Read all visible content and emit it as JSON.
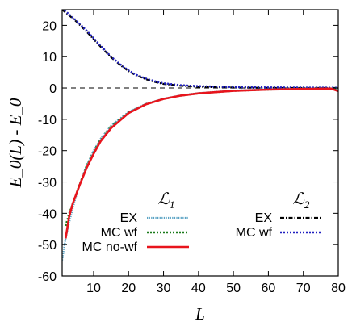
{
  "chart_data": {
    "type": "line",
    "xlabel": "L",
    "ylabel": "E_0(L) - E_0",
    "xlim": [
      1,
      80
    ],
    "ylim": [
      -60,
      25
    ],
    "x_ticks": [
      10,
      20,
      30,
      40,
      50,
      60,
      70,
      80
    ],
    "y_ticks": [
      20,
      10,
      0,
      -10,
      -20,
      -30,
      -40,
      -50,
      -60
    ],
    "grid": false,
    "reference_line": {
      "y": 0,
      "style": "dashed",
      "color": "#000000"
    },
    "legend": {
      "groups": [
        {
          "heading": "ℒ",
          "heading_sub": "1",
          "placement": "center-left",
          "entries": [
            {
              "label": "EX",
              "series": 0
            },
            {
              "label": "MC wf",
              "series": 1
            },
            {
              "label": "MC no-wf",
              "series": 2
            }
          ]
        },
        {
          "heading": "ℒ",
          "heading_sub": "2",
          "placement": "center-right",
          "entries": [
            {
              "label": "EX",
              "series": 3
            },
            {
              "label": "MC wf",
              "series": 4
            }
          ]
        }
      ]
    },
    "series": [
      {
        "name": "EX",
        "group": "L1",
        "color": "#5ba3c4",
        "style": "dotted-fine",
        "x": [
          1,
          2,
          3,
          4,
          5,
          6,
          8,
          10,
          12,
          15,
          20,
          25,
          30,
          35,
          40,
          50,
          60,
          70,
          80
        ],
        "y": [
          -55,
          -48,
          -43,
          -38.5,
          -34.5,
          -31,
          -24.8,
          -20,
          -16.2,
          -12,
          -7.6,
          -5,
          -3.4,
          -2.3,
          -1.6,
          -0.8,
          -0.4,
          -0.2,
          -0.1
        ]
      },
      {
        "name": "MC wf",
        "group": "L1",
        "color": "#1a7a1a",
        "style": "dotted",
        "x": [
          2,
          3,
          4,
          5,
          6,
          8,
          10,
          12,
          15,
          20,
          25,
          30,
          35,
          40,
          50,
          60,
          70,
          80
        ],
        "y": [
          -44,
          -40,
          -37,
          -34,
          -30.8,
          -24.8,
          -20.2,
          -16.4,
          -12.2,
          -7.8,
          -5.1,
          -3.5,
          -2.4,
          -1.7,
          -0.9,
          -0.5,
          -0.3,
          -0.2
        ]
      },
      {
        "name": "MC no-wf",
        "group": "L1",
        "color": "#e8141c",
        "style": "solid",
        "x": [
          2,
          3,
          4,
          5,
          6,
          8,
          10,
          12,
          15,
          20,
          25,
          30,
          35,
          40,
          50,
          60,
          70,
          78,
          80
        ],
        "y": [
          -48,
          -41,
          -37,
          -34,
          -31,
          -25.5,
          -21,
          -17,
          -12.8,
          -8,
          -5.2,
          -3.5,
          -2.4,
          -1.7,
          -0.9,
          -0.5,
          -0.3,
          -0.2,
          -1
        ]
      },
      {
        "name": "EX",
        "group": "L2",
        "color": "#000000",
        "style": "dash-dot",
        "x": [
          1,
          3,
          5,
          8,
          10,
          12,
          15,
          18,
          20,
          22,
          25,
          28,
          30,
          35,
          40,
          50,
          60,
          70,
          80
        ],
        "y": [
          25,
          23.2,
          21.3,
          18,
          15.6,
          13.2,
          9.8,
          7,
          5.4,
          4.1,
          2.8,
          1.8,
          1.3,
          0.7,
          0.4,
          0.15,
          0.05,
          0.02,
          0.01
        ]
      },
      {
        "name": "MC wf",
        "group": "L2",
        "color": "#1f1fbf",
        "style": "dotted",
        "x": [
          1,
          3,
          5,
          8,
          10,
          12,
          15,
          18,
          20,
          22,
          25,
          28,
          30,
          35,
          40,
          50,
          60,
          70,
          80
        ],
        "y": [
          25.5,
          23.5,
          21.6,
          18.3,
          15.9,
          13.5,
          10,
          7.2,
          5.6,
          4.3,
          3,
          2,
          1.5,
          0.9,
          0.6,
          0.3,
          0.2,
          0.15,
          0.1
        ]
      }
    ]
  }
}
